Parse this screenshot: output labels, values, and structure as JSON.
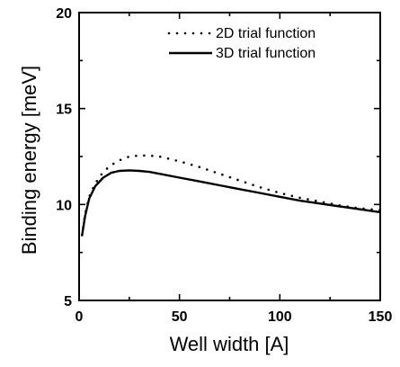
{
  "chart_data": {
    "type": "line",
    "title": "",
    "xlabel": "Well width [A]",
    "ylabel": "Binding energy [meV]",
    "xlim": [
      0,
      150
    ],
    "ylim": [
      5,
      20
    ],
    "xticks": [
      0,
      50,
      100,
      150
    ],
    "yticks": [
      5,
      10,
      15,
      20
    ],
    "grid": false,
    "legend_position": "top-right",
    "series": [
      {
        "name": "2D trial function",
        "style": "dotted",
        "color": "#000000",
        "x": [
          1.5,
          3,
          5,
          8,
          12,
          16,
          20,
          25,
          30,
          35,
          40,
          50,
          60,
          70,
          80,
          90,
          100,
          110,
          120,
          130,
          140,
          150
        ],
        "y": [
          8.4,
          9.5,
          10.4,
          11.1,
          11.7,
          12.05,
          12.3,
          12.5,
          12.55,
          12.55,
          12.5,
          12.25,
          11.95,
          11.6,
          11.25,
          10.9,
          10.6,
          10.35,
          10.15,
          9.95,
          9.8,
          9.7
        ]
      },
      {
        "name": "3D trial function",
        "style": "solid",
        "color": "#000000",
        "x": [
          1.5,
          3,
          5,
          8,
          12,
          16,
          20,
          25,
          30,
          35,
          40,
          50,
          60,
          70,
          80,
          90,
          100,
          110,
          120,
          130,
          140,
          150
        ],
        "y": [
          8.4,
          9.4,
          10.3,
          10.95,
          11.4,
          11.65,
          11.75,
          11.78,
          11.75,
          11.7,
          11.6,
          11.4,
          11.2,
          11.0,
          10.8,
          10.6,
          10.4,
          10.2,
          10.05,
          9.9,
          9.75,
          9.6
        ]
      }
    ]
  }
}
